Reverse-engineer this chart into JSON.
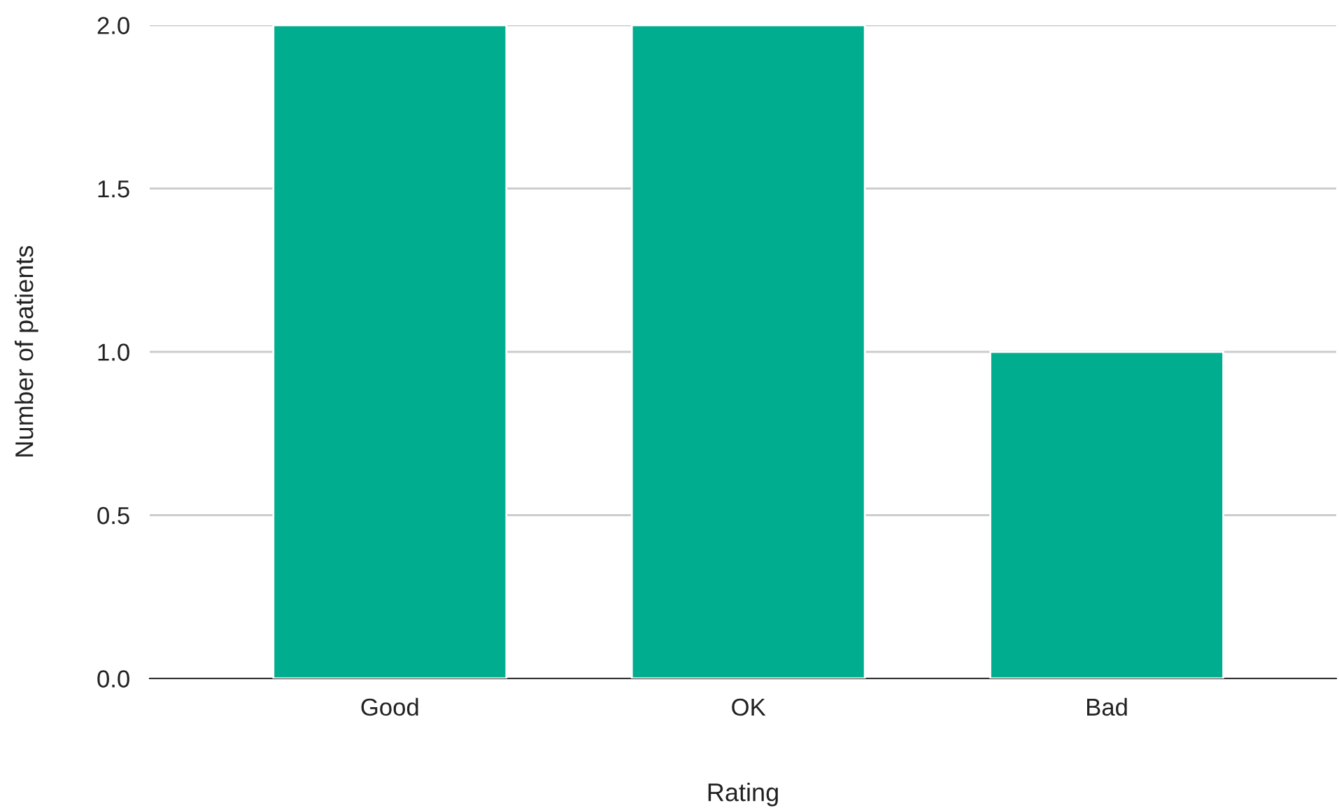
{
  "chart_data": {
    "type": "bar",
    "xlabel": "Rating",
    "ylabel": "Number of patients",
    "categories": [
      "Good",
      "OK",
      "Bad"
    ],
    "values": [
      2,
      2,
      1
    ],
    "color": "#00ad8e",
    "ylim": [
      0,
      2
    ],
    "yticks": [
      {
        "value": 0,
        "label": "0.0"
      },
      {
        "value": 0.5,
        "label": "0.5"
      },
      {
        "value": 1,
        "label": "1.0"
      },
      {
        "value": 1.5,
        "label": "1.5"
      },
      {
        "value": 2,
        "label": "2.0"
      }
    ],
    "grid": "y",
    "legend": false
  }
}
